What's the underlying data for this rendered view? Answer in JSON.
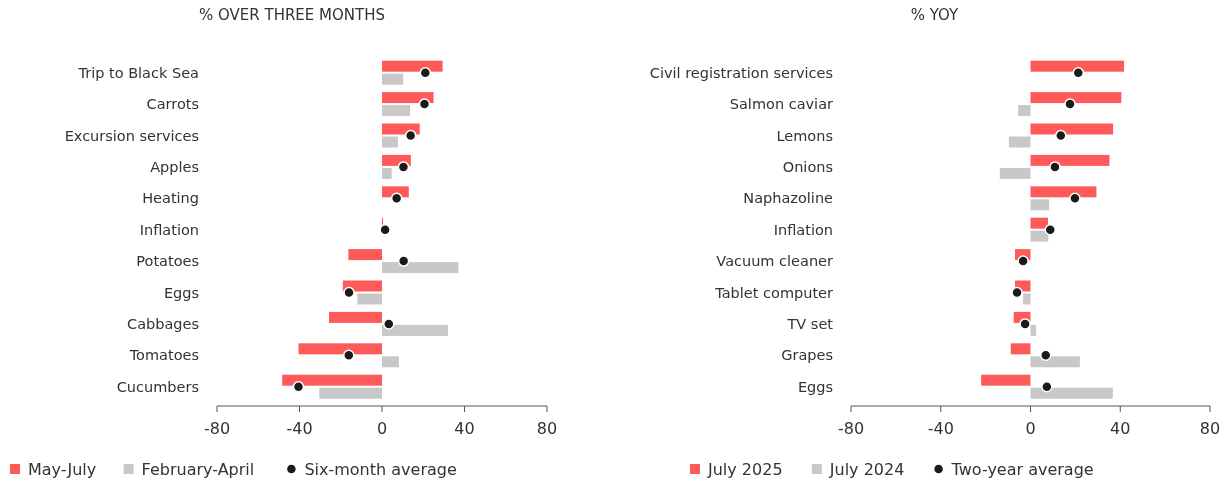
{
  "chart_data": [
    {
      "type": "bar",
      "orientation": "horizontal",
      "title": "% OVER THREE MONTHS",
      "categories": [
        "Trip to Black Sea",
        "Carrots",
        "Excursion services",
        "Apples",
        "Heating",
        "Inflation",
        "Potatoes",
        "Eggs",
        "Cabbages",
        "Tomatoes",
        "Cucumbers"
      ],
      "xlim": [
        -80,
        80
      ],
      "xticks": [
        -80,
        -40,
        0,
        40,
        80
      ],
      "legend": "bottom",
      "grid": false,
      "series": [
        {
          "name": "May-July",
          "color": "#ff5a5a",
          "values": [
            29.4,
            25,
            18.3,
            14,
            13,
            0.5,
            -16.3,
            -19,
            -25.7,
            -40.5,
            -48.4
          ]
        },
        {
          "name": "February-April",
          "color": "#c8c8c8",
          "values": [
            10.3,
            13.6,
            7.7,
            4.7,
            0,
            null,
            37,
            -12,
            32,
            8.2,
            -30.4
          ]
        },
        {
          "name": "Six-month average",
          "type": "scatter",
          "marker": "circle",
          "color": "#1a1a1a",
          "x": [
            "Trip to Black Sea",
            "Carrots",
            "Excursion services",
            "Apples",
            "Heating",
            "Inflation",
            "Potatoes",
            "Eggs",
            "Cabbages",
            "Tomatoes",
            "Cucumbers"
          ],
          "values": [
            21,
            20.6,
            13.9,
            10.4,
            7.1,
            1.5,
            10.5,
            -16,
            3.3,
            -16.1,
            -40.5
          ]
        }
      ]
    },
    {
      "type": "bar",
      "orientation": "horizontal",
      "title": "% YOY",
      "categories": [
        "Civil registration services",
        "Salmon caviar",
        "Lemons",
        "Onions",
        "Naphazoline",
        "Inflation",
        "Vacuum cleaner",
        "Tablet computer",
        "TV set",
        "Grapes",
        "Eggs"
      ],
      "xlim": [
        -80,
        80
      ],
      "xticks": [
        -80,
        -40,
        0,
        40,
        80
      ],
      "legend": "bottom",
      "grid": false,
      "series": [
        {
          "name": "July 2025",
          "color": "#ff5a5a",
          "values": [
            41.7,
            40.5,
            36.8,
            35.2,
            29.4,
            7.8,
            -6.9,
            -6.9,
            -7.5,
            -8.8,
            -22
          ]
        },
        {
          "name": "July 2024",
          "color": "#c8c8c8",
          "values": [
            0,
            -5.5,
            -9.6,
            -13.7,
            8.3,
            7.9,
            null,
            -3.3,
            2.5,
            22,
            36.7
          ]
        },
        {
          "name": "Two-year average",
          "type": "scatter",
          "marker": "circle",
          "color": "#1a1a1a",
          "x": [
            "Civil registration services",
            "Salmon caviar",
            "Lemons",
            "Onions",
            "Naphazoline",
            "Inflation",
            "Vacuum cleaner",
            "Tablet computer",
            "TV set",
            "Grapes",
            "Eggs"
          ],
          "values": [
            21.3,
            17.6,
            13.5,
            10.9,
            19.8,
            8.8,
            -3.3,
            -6,
            -2.4,
            6.8,
            7.3
          ]
        }
      ]
    }
  ]
}
